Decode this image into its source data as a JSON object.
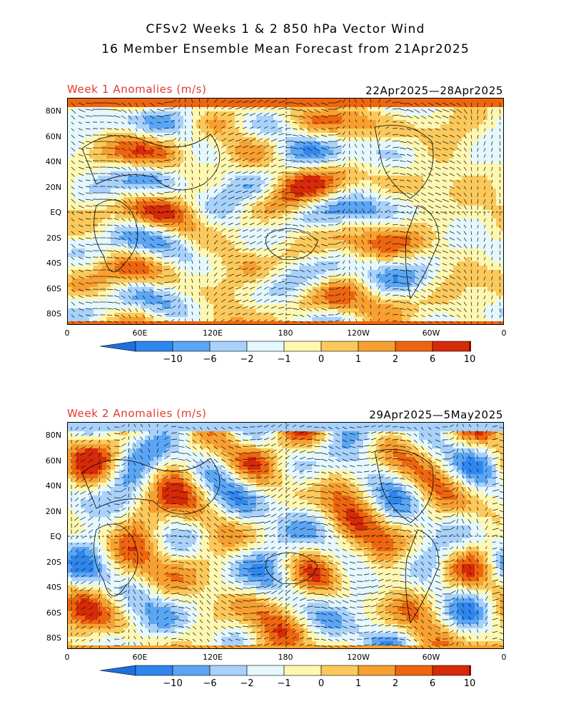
{
  "title_line1": "CFSv2 Weeks 1 & 2 850 hPa Vector Wind",
  "title_line2": "16 Member Ensemble Mean Forecast from 21Apr2025",
  "panels": [
    {
      "label": "Week 1 Anomalies (m/s)",
      "dates": "22Apr2025—28Apr2025"
    },
    {
      "label": "Week 2 Anomalies (m/s)",
      "dates": "29Apr2025—5May2025"
    }
  ],
  "lat_labels": [
    "80N",
    "60N",
    "40N",
    "20N",
    "EQ",
    "20S",
    "40S",
    "60S",
    "80S"
  ],
  "lon_labels": [
    "0",
    "60E",
    "120E",
    "180",
    "120W",
    "60W",
    "0"
  ],
  "colorbar": {
    "labels": [
      "−10",
      "−6",
      "−2",
      "−1",
      "0",
      "1",
      "2",
      "6",
      "10"
    ],
    "colors": [
      "#1e6ee0",
      "#2f86ee",
      "#5aa6f5",
      "#a8d2fb",
      "#e4f8fe",
      "#fdf7b2",
      "#fbc95b",
      "#f7a030",
      "#ee6510",
      "#d72a08",
      "#a50a00"
    ]
  }
}
